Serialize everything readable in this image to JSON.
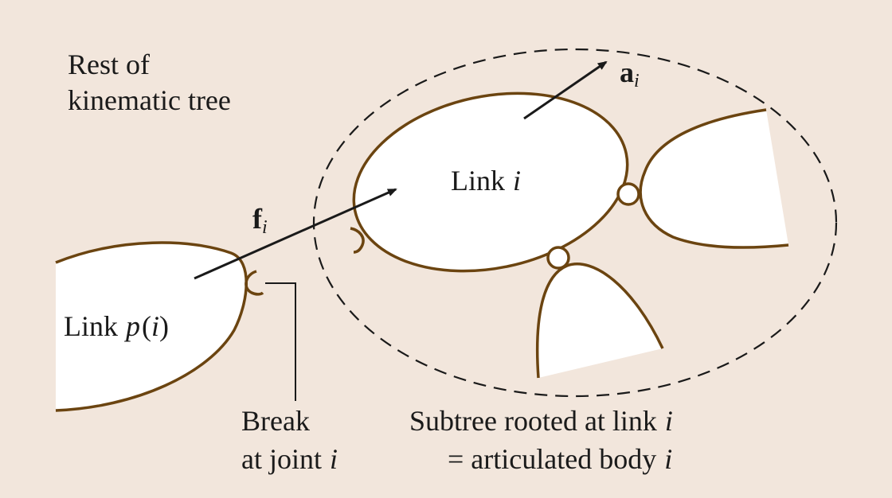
{
  "labels": {
    "rest_line1": "Rest of",
    "rest_line2": "kinematic tree",
    "link_i_word": "Link",
    "link_i_var": "i",
    "link_p_word": "Link",
    "link_p_var": "p",
    "link_p_open": "(",
    "link_p_arg": "i",
    "link_p_close": ")",
    "f_symbol": "f",
    "f_sub": "i",
    "a_symbol": "a",
    "a_sub": "i",
    "break_line1": "Break",
    "break_line2_text": "at joint",
    "break_line2_var": "i",
    "subtree_line1_text": "Subtree rooted at link",
    "subtree_line1_var": "i",
    "subtree_line2_text": "= articulated body",
    "subtree_line2_var": "i"
  },
  "colors": {
    "background": "#f2e6dc",
    "link_outline": "#6b4410",
    "link_fill": "#ffffff",
    "ink": "#1a1a1a"
  }
}
